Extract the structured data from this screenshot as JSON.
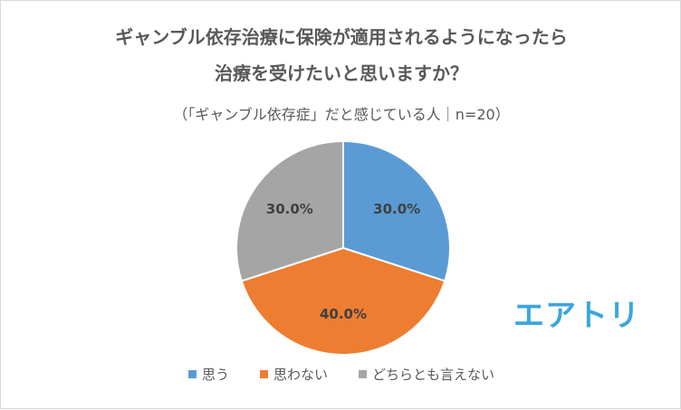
{
  "title_line1": "ギャンブル依存治療に保険が適用されるようになったら",
  "title_line2": "治療を受けたいと思いますか？",
  "subtitle": "（「ギャンブル依存症」だと感じている人｜n=20）",
  "logo_text": "エアトリ",
  "chart_data": {
    "type": "pie",
    "categories": [
      "思う",
      "思わない",
      "どちらとも言えない"
    ],
    "values": [
      30.0,
      40.0,
      30.0
    ],
    "data_labels": [
      "30.0%",
      "40.0%",
      "30.0%"
    ],
    "colors": [
      "#5b9bd5",
      "#ed7d31",
      "#a5a5a5"
    ],
    "legend_position": "bottom"
  }
}
